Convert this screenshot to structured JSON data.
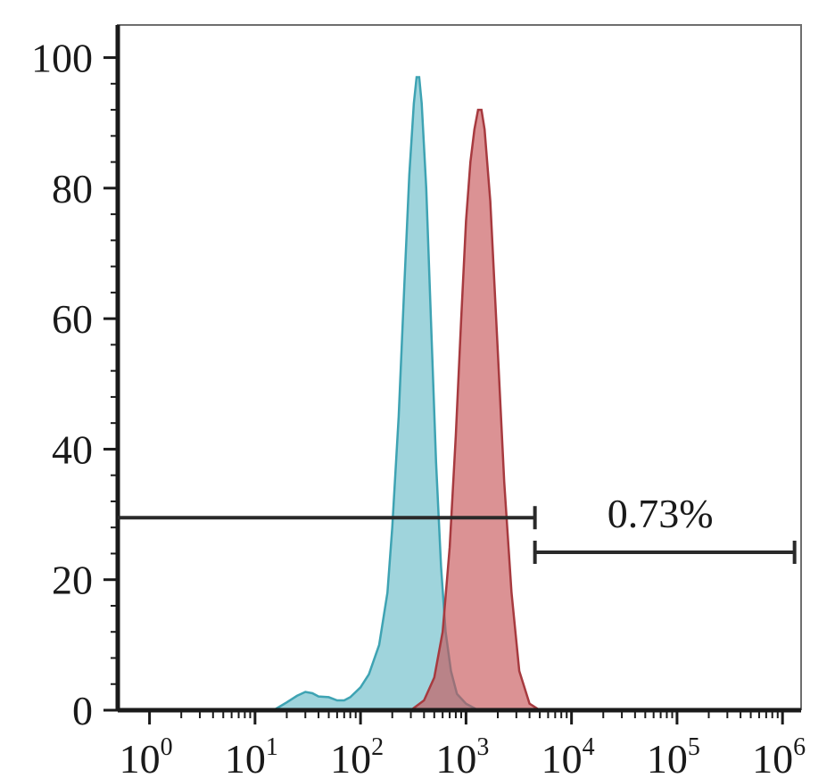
{
  "chart_data": {
    "type": "area",
    "title": "",
    "xlabel": "",
    "ylabel": "",
    "x_scale": "log",
    "xlim": [
      0.5,
      1500000
    ],
    "ylim": [
      0,
      105
    ],
    "grid": false,
    "x_ticks": [
      {
        "base": "10",
        "exp": "0",
        "value": 1
      },
      {
        "base": "10",
        "exp": "1",
        "value": 10
      },
      {
        "base": "10",
        "exp": "2",
        "value": 100
      },
      {
        "base": "10",
        "exp": "3",
        "value": 1000
      },
      {
        "base": "10",
        "exp": "4",
        "value": 10000
      },
      {
        "base": "10",
        "exp": "5",
        "value": 100000
      },
      {
        "base": "10",
        "exp": "6",
        "value": 1000000
      }
    ],
    "y_ticks": [
      {
        "label": "0",
        "value": 0
      },
      {
        "label": "20",
        "value": 20
      },
      {
        "label": "40",
        "value": 40
      },
      {
        "label": "60",
        "value": 60
      },
      {
        "label": "80",
        "value": 80
      },
      {
        "label": "100",
        "value": 100
      }
    ],
    "series": [
      {
        "color": "#5fb8c4",
        "stroke": "#3ea3b3",
        "points": [
          [
            15,
            0
          ],
          [
            20,
            1.2
          ],
          [
            25,
            2.2
          ],
          [
            30,
            2.8
          ],
          [
            35,
            2.6
          ],
          [
            40,
            2.1
          ],
          [
            50,
            2.0
          ],
          [
            60,
            1.5
          ],
          [
            70,
            1.5
          ],
          [
            80,
            2.0
          ],
          [
            100,
            3.5
          ],
          [
            120,
            5.5
          ],
          [
            150,
            10
          ],
          [
            180,
            18
          ],
          [
            200,
            28
          ],
          [
            230,
            45
          ],
          [
            260,
            65
          ],
          [
            290,
            82
          ],
          [
            320,
            93
          ],
          [
            340,
            97
          ],
          [
            360,
            97
          ],
          [
            380,
            93
          ],
          [
            420,
            80
          ],
          [
            460,
            62
          ],
          [
            520,
            38
          ],
          [
            580,
            22
          ],
          [
            640,
            12
          ],
          [
            720,
            6
          ],
          [
            820,
            2.5
          ],
          [
            1000,
            1
          ],
          [
            1300,
            0
          ]
        ]
      },
      {
        "color": "#c8585a",
        "stroke": "#a73a3f",
        "points": [
          [
            300,
            0
          ],
          [
            400,
            1.5
          ],
          [
            500,
            5
          ],
          [
            600,
            12
          ],
          [
            700,
            25
          ],
          [
            800,
            42
          ],
          [
            900,
            60
          ],
          [
            1000,
            75
          ],
          [
            1100,
            84
          ],
          [
            1200,
            89
          ],
          [
            1300,
            92
          ],
          [
            1400,
            92
          ],
          [
            1500,
            89
          ],
          [
            1700,
            78
          ],
          [
            2000,
            55
          ],
          [
            2300,
            35
          ],
          [
            2700,
            18
          ],
          [
            3200,
            6
          ],
          [
            4000,
            1
          ],
          [
            5000,
            0
          ]
        ]
      }
    ],
    "annotations": [
      {
        "type": "gate",
        "x_from": 0.5,
        "x_to": 4500,
        "y": 29.5
      },
      {
        "type": "gate",
        "x_from": 4500,
        "x_to": 1300000,
        "y": 24.2,
        "label": "0.73%"
      }
    ]
  }
}
